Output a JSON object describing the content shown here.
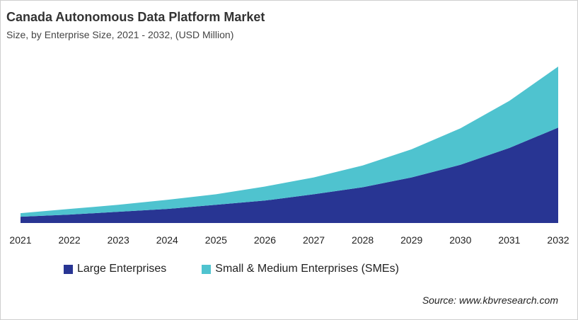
{
  "title": "Canada Autonomous Data Platform Market",
  "subtitle": "Size, by Enterprise Size, 2021 - 2032, (USD Million)",
  "source": "Source: www.kbvresearch.com",
  "chart_data": {
    "type": "area",
    "stacked": true,
    "title": "Canada Autonomous Data Platform Market",
    "subtitle": "Size, by Enterprise Size, 2021 - 2032, (USD Million)",
    "categories": [
      "2021",
      "2022",
      "2023",
      "2024",
      "2025",
      "2026",
      "2027",
      "2028",
      "2029",
      "2030",
      "2031",
      "2032"
    ],
    "series": [
      {
        "name": "Large Enterprises",
        "color": "#283593",
        "values": [
          9,
          12,
          16,
          20,
          26,
          32,
          41,
          51,
          65,
          83,
          107,
          136
        ]
      },
      {
        "name": "Small & Medium Enterprises (SMEs)",
        "color": "#4fc3cf",
        "values": [
          5,
          8,
          10,
          13,
          15,
          20,
          24,
          31,
          40,
          52,
          67,
          87
        ]
      }
    ],
    "ylim": [
      0,
      225
    ],
    "y_axis_visible": false,
    "grid": false,
    "legend": "bottom"
  }
}
